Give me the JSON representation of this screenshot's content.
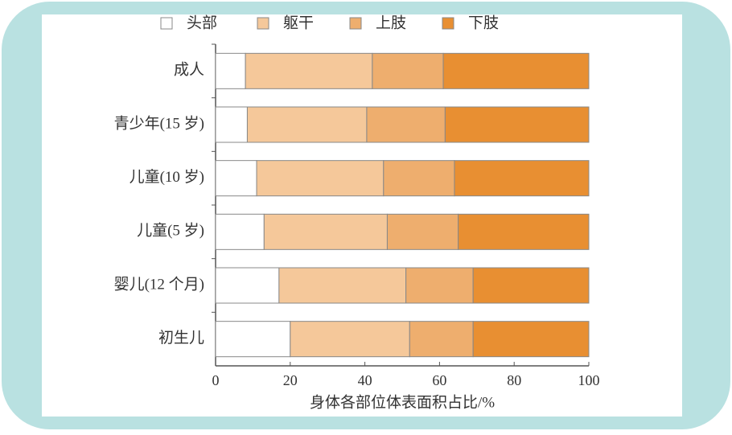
{
  "chart_data": {
    "type": "stacked-bar-horizontal",
    "x_label": "身体各部位体表面积占比/%",
    "categories": [
      "成人",
      "青少年(15 岁)",
      "儿童(10 岁)",
      "儿童(5 岁)",
      "婴儿(12 个月)",
      "初生儿"
    ],
    "series": [
      {
        "name": "头部",
        "color": "#ffffff",
        "values": [
          8,
          8.5,
          11,
          13,
          17,
          20
        ]
      },
      {
        "name": "躯干",
        "color": "#f5c89a",
        "values": [
          34,
          32,
          34,
          33,
          34,
          32
        ]
      },
      {
        "name": "上肢",
        "color": "#eeae6e",
        "values": [
          19,
          21,
          19,
          19,
          18,
          17
        ]
      },
      {
        "name": "下肢",
        "color": "#e88f32",
        "values": [
          39,
          38.5,
          36,
          35,
          31,
          31
        ]
      }
    ],
    "xlim": [
      0,
      100
    ],
    "xticks": [
      0,
      20,
      40,
      60,
      80,
      100
    ],
    "legend": "top"
  }
}
